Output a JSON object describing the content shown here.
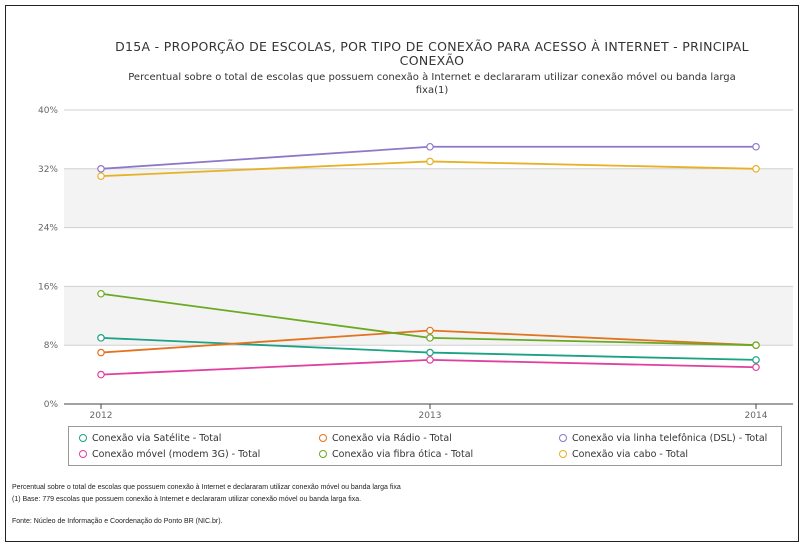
{
  "chart_data": {
    "type": "line",
    "title_line1": "D15A - PROPORÇÃO DE ESCOLAS, POR TIPO DE CONEXÃO PARA ACESSO À INTERNET - PRINCIPAL",
    "title_line2": "CONEXÃO",
    "subtitle_line1": "Percentual sobre o total de escolas que possuem conexão à Internet e declararam utilizar conexão móvel ou banda larga",
    "subtitle_line2": "fixa(1)",
    "categories": [
      "2012",
      "2013",
      "2014"
    ],
    "y_ticks": [
      "0%",
      "8%",
      "16%",
      "24%",
      "32%",
      "40%"
    ],
    "ylim": [
      0,
      40
    ],
    "y_unit": "%",
    "grid": true,
    "alternating_bands": true,
    "legend_position": "bottom",
    "series": [
      {
        "name": "Conexão via Satélite - Total",
        "color": "#1aa283",
        "values": [
          9,
          7,
          6
        ]
      },
      {
        "name": "Conexão via Rádio - Total",
        "color": "#e2731f",
        "values": [
          7,
          10,
          8
        ]
      },
      {
        "name": "Conexão via linha telefônica (DSL) - Total",
        "color": "#8e78c8",
        "values": [
          32,
          35,
          35
        ]
      },
      {
        "name": "Conexão móvel (modem 3G) - Total",
        "color": "#e03f9f",
        "values": [
          4,
          6,
          5
        ]
      },
      {
        "name": "Conexão via fibra ótica - Total",
        "color": "#6aaa22",
        "values": [
          15,
          9,
          8
        ]
      },
      {
        "name": "Conexão via cabo - Total",
        "color": "#e8b125",
        "values": [
          31,
          33,
          32
        ]
      }
    ]
  },
  "footnotes": {
    "line1": "Percentual sobre o total de escolas que possuem conexão à Internet e declararam utilizar conexão móvel ou banda larga fixa",
    "line2": "(1) Base: 779 escolas que possuem conexão à Internet e declararam utilizar conexão móvel ou banda larga fixa.",
    "source": "Fonte: Núcleo de Informação e Coordenação do Ponto BR (NIC.br)."
  }
}
